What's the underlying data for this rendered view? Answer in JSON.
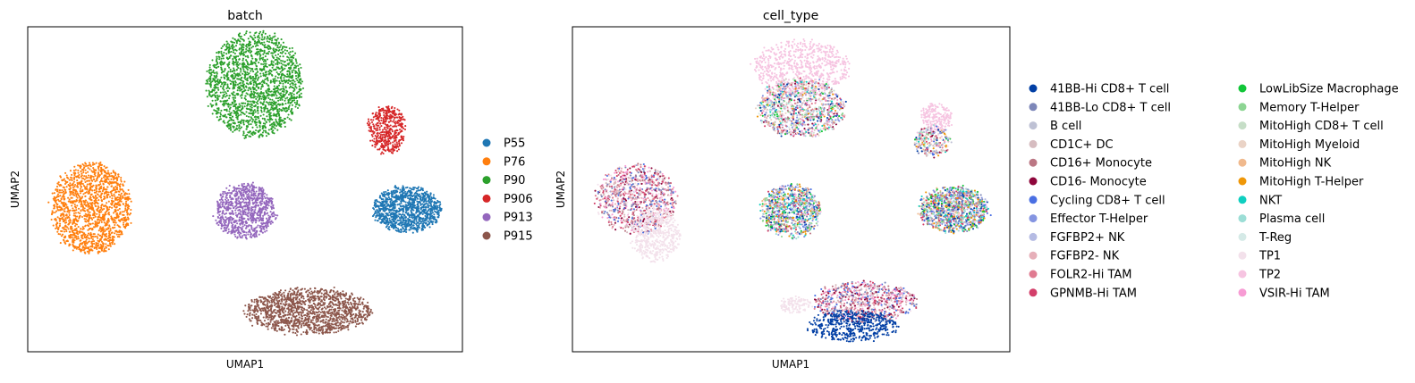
{
  "chart_data": [
    {
      "type": "scatter",
      "title": "batch",
      "xlabel": "UMAP1",
      "ylabel": "UMAP2",
      "grid": false,
      "legend_placement": "right",
      "xlim": [
        -8.5,
        13.5
      ],
      "ylim": [
        -8.5,
        13
      ],
      "legend": [
        {
          "name": "P55",
          "color": "#1f77b4"
        },
        {
          "name": "P76",
          "color": "#ff7f0e"
        },
        {
          "name": "P90",
          "color": "#2ca02c"
        },
        {
          "name": "P906",
          "color": "#d62728"
        },
        {
          "name": "P913",
          "color": "#9467bd"
        },
        {
          "name": "P915",
          "color": "#8c564b"
        }
      ],
      "clusters": [
        {
          "series": "P90",
          "cx": 3.0,
          "cy": 9.2,
          "rx": 2.4,
          "ry": 3.5,
          "n": 1800
        },
        {
          "series": "P76",
          "cx": -5.3,
          "cy": 1.0,
          "rx": 2.0,
          "ry": 3.0,
          "n": 1500
        },
        {
          "series": "P906",
          "cx": 9.7,
          "cy": 6.2,
          "rx": 0.9,
          "ry": 1.6,
          "n": 450
        },
        {
          "series": "P913",
          "cx": 2.5,
          "cy": 0.8,
          "rx": 1.5,
          "ry": 1.8,
          "n": 900
        },
        {
          "series": "P55",
          "cx": 10.7,
          "cy": 0.9,
          "rx": 1.7,
          "ry": 1.5,
          "n": 1100
        },
        {
          "series": "P915",
          "cx": 5.7,
          "cy": -5.8,
          "rx": 3.2,
          "ry": 1.5,
          "n": 1400
        }
      ]
    },
    {
      "type": "scatter",
      "title": "cell_type",
      "xlabel": "UMAP1",
      "ylabel": "UMAP2",
      "grid": false,
      "legend_placement": "right",
      "xlim": [
        -8.5,
        13.5
      ],
      "ylim": [
        -8.5,
        13
      ],
      "legend": [
        {
          "name": "41BB-Hi CD8+ T cell",
          "color": "#023fa5"
        },
        {
          "name": "41BB-Lo CD8+ T cell",
          "color": "#7d87b9"
        },
        {
          "name": "B cell",
          "color": "#bec1d4"
        },
        {
          "name": "CD1C+ DC",
          "color": "#d6bcc0"
        },
        {
          "name": "CD16+ Monocyte",
          "color": "#bb7784"
        },
        {
          "name": "CD16- Monocyte",
          "color": "#8e063b"
        },
        {
          "name": "Cycling CD8+ T cell",
          "color": "#4a6fe3"
        },
        {
          "name": "Effector T-Helper",
          "color": "#8595e1"
        },
        {
          "name": "FGFBP2+ NK",
          "color": "#b5bbe3"
        },
        {
          "name": "FGFBP2- NK",
          "color": "#e6afb9"
        },
        {
          "name": "FOLR2-Hi TAM",
          "color": "#e07b91"
        },
        {
          "name": "GPNMB-Hi TAM",
          "color": "#d33f6a"
        },
        {
          "name": "LowLibSize Macrophage",
          "color": "#11c638"
        },
        {
          "name": "Memory T-Helper",
          "color": "#8dd593"
        },
        {
          "name": "MitoHigh CD8+ T cell",
          "color": "#c6dec7"
        },
        {
          "name": "MitoHigh Myeloid",
          "color": "#ead3c6"
        },
        {
          "name": "MitoHigh NK",
          "color": "#f0b98d"
        },
        {
          "name": "MitoHigh T-Helper",
          "color": "#ef9708"
        },
        {
          "name": "NKT",
          "color": "#0fcfc0"
        },
        {
          "name": "Plasma cell",
          "color": "#9cded6"
        },
        {
          "name": "T-Reg",
          "color": "#d5eae7"
        },
        {
          "name": "TP1",
          "color": "#f3e1eb"
        },
        {
          "name": "TP2",
          "color": "#f6c4e1"
        },
        {
          "name": "VSIR-Hi TAM",
          "color": "#f79cd4"
        }
      ],
      "clusters": [
        {
          "series": "TP2",
          "cx": 3.0,
          "cy": 10.3,
          "rx": 2.4,
          "ry": 1.8,
          "n": 700
        },
        {
          "series": "mixed",
          "cx": 3.0,
          "cy": 7.6,
          "rx": 2.2,
          "ry": 1.9,
          "n": 1100
        },
        {
          "series": "mixed-myeloid",
          "cx": -5.3,
          "cy": 1.6,
          "rx": 2.0,
          "ry": 2.3,
          "n": 1000
        },
        {
          "series": "TP1",
          "cx": -4.3,
          "cy": -0.8,
          "rx": 1.2,
          "ry": 1.8,
          "n": 500
        },
        {
          "series": "TP2",
          "cx": 9.8,
          "cy": 7.0,
          "rx": 0.7,
          "ry": 0.9,
          "n": 200
        },
        {
          "series": "mixed",
          "cx": 9.6,
          "cy": 5.4,
          "rx": 0.9,
          "ry": 1.0,
          "n": 250
        },
        {
          "series": "mixed-t",
          "cx": 2.5,
          "cy": 0.8,
          "rx": 1.5,
          "ry": 1.8,
          "n": 900
        },
        {
          "series": "mixed-t",
          "cx": 10.7,
          "cy": 0.9,
          "rx": 1.7,
          "ry": 1.5,
          "n": 1100
        },
        {
          "series": "mixed-myeloid",
          "cx": 6.2,
          "cy": -5.2,
          "rx": 2.6,
          "ry": 1.3,
          "n": 800
        },
        {
          "series": "41BB-Hi CD8+ T cell",
          "cx": 5.6,
          "cy": -6.8,
          "rx": 2.3,
          "ry": 1.0,
          "n": 500
        },
        {
          "series": "TP1",
          "cx": 2.7,
          "cy": -5.4,
          "rx": 0.8,
          "ry": 0.5,
          "n": 120
        }
      ]
    }
  ]
}
